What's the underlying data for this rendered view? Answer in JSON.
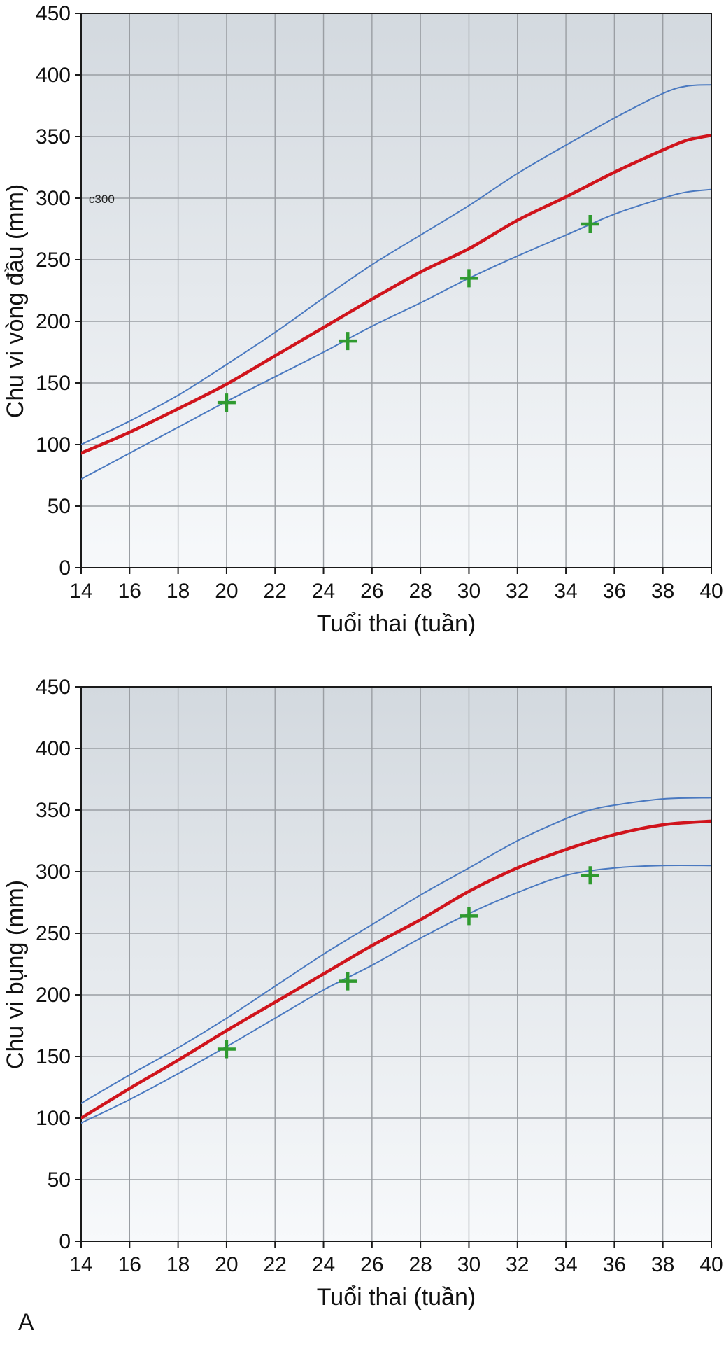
{
  "panel_label": "A",
  "chart_data": [
    {
      "type": "line",
      "title": "",
      "xlabel": "Tuổi thai (tuần)",
      "ylabel": "Chu vi vòng đầu (mm)",
      "xlim": [
        14,
        40
      ],
      "ylim": [
        0,
        450
      ],
      "x_ticks": [
        14,
        16,
        18,
        20,
        22,
        24,
        26,
        28,
        30,
        32,
        34,
        36,
        38,
        40
      ],
      "y_ticks": [
        0,
        50,
        100,
        150,
        200,
        250,
        300,
        350,
        400,
        450
      ],
      "grid": true,
      "legend": "none",
      "colors": {
        "background_top": "#d3d9df",
        "background_bottom": "#f7f9fb",
        "grid": "#9a9ea3",
        "median": "#d0141c",
        "bounds": "#4a79c0",
        "measurements": "#2f9a2f"
      },
      "series": [
        {
          "role": "upper",
          "x": [
            14,
            16,
            18,
            20,
            22,
            24,
            26,
            28,
            30,
            32,
            34,
            36,
            38,
            39,
            40
          ],
          "values": [
            100,
            119,
            140,
            165,
            191,
            219,
            246,
            270,
            294,
            320,
            343,
            365,
            385,
            391,
            392
          ]
        },
        {
          "role": "median",
          "x": [
            14,
            16,
            18,
            20,
            22,
            24,
            26,
            28,
            30,
            32,
            34,
            36,
            38,
            39,
            40
          ],
          "values": [
            93,
            110,
            129,
            149,
            172,
            195,
            218,
            240,
            259,
            282,
            301,
            321,
            339,
            347,
            351
          ]
        },
        {
          "role": "lower",
          "x": [
            14,
            16,
            18,
            20,
            22,
            24,
            26,
            28,
            30,
            32,
            34,
            36,
            38,
            39,
            40
          ],
          "values": [
            72,
            93,
            114,
            135,
            155,
            175,
            196,
            215,
            235,
            253,
            270,
            287,
            300,
            305,
            307
          ]
        },
        {
          "role": "measurements",
          "x": [
            20,
            25,
            30,
            35
          ],
          "values": [
            134,
            184,
            235,
            279
          ]
        }
      ],
      "annotations": [
        {
          "text": "c300",
          "x": 14.2,
          "y": 300
        }
      ]
    },
    {
      "type": "line",
      "title": "",
      "xlabel": "Tuổi thai (tuần)",
      "ylabel": "Chu vi bụng (mm)",
      "xlim": [
        14,
        40
      ],
      "ylim": [
        0,
        450
      ],
      "x_ticks": [
        14,
        16,
        18,
        20,
        22,
        24,
        26,
        28,
        30,
        32,
        34,
        36,
        38,
        40
      ],
      "y_ticks": [
        0,
        50,
        100,
        150,
        200,
        250,
        300,
        350,
        400,
        450
      ],
      "grid": true,
      "legend": "none",
      "colors": {
        "background_top": "#d3d9df",
        "background_bottom": "#f7f9fb",
        "grid": "#9a9ea3",
        "median": "#d0141c",
        "bounds": "#4a79c0",
        "measurements": "#2f9a2f"
      },
      "series": [
        {
          "role": "upper",
          "x": [
            14,
            16,
            18,
            20,
            22,
            24,
            26,
            28,
            30,
            32,
            34,
            35,
            36,
            38,
            40
          ],
          "values": [
            112,
            135,
            157,
            181,
            207,
            233,
            257,
            281,
            303,
            325,
            343,
            350,
            354,
            359,
            360
          ]
        },
        {
          "role": "median",
          "x": [
            14,
            16,
            18,
            20,
            22,
            24,
            26,
            28,
            30,
            32,
            34,
            36,
            38,
            40
          ],
          "values": [
            100,
            124,
            147,
            171,
            194,
            217,
            240,
            261,
            284,
            303,
            318,
            330,
            338,
            341
          ]
        },
        {
          "role": "lower",
          "x": [
            14,
            16,
            18,
            20,
            22,
            24,
            26,
            28,
            30,
            32,
            34,
            36,
            38,
            40
          ],
          "values": [
            96,
            115,
            136,
            158,
            181,
            204,
            224,
            246,
            266,
            283,
            297,
            303,
            305,
            305
          ]
        },
        {
          "role": "measurements",
          "x": [
            20,
            25,
            30,
            35
          ],
          "values": [
            156,
            211,
            264,
            297
          ]
        }
      ],
      "annotations": []
    }
  ]
}
